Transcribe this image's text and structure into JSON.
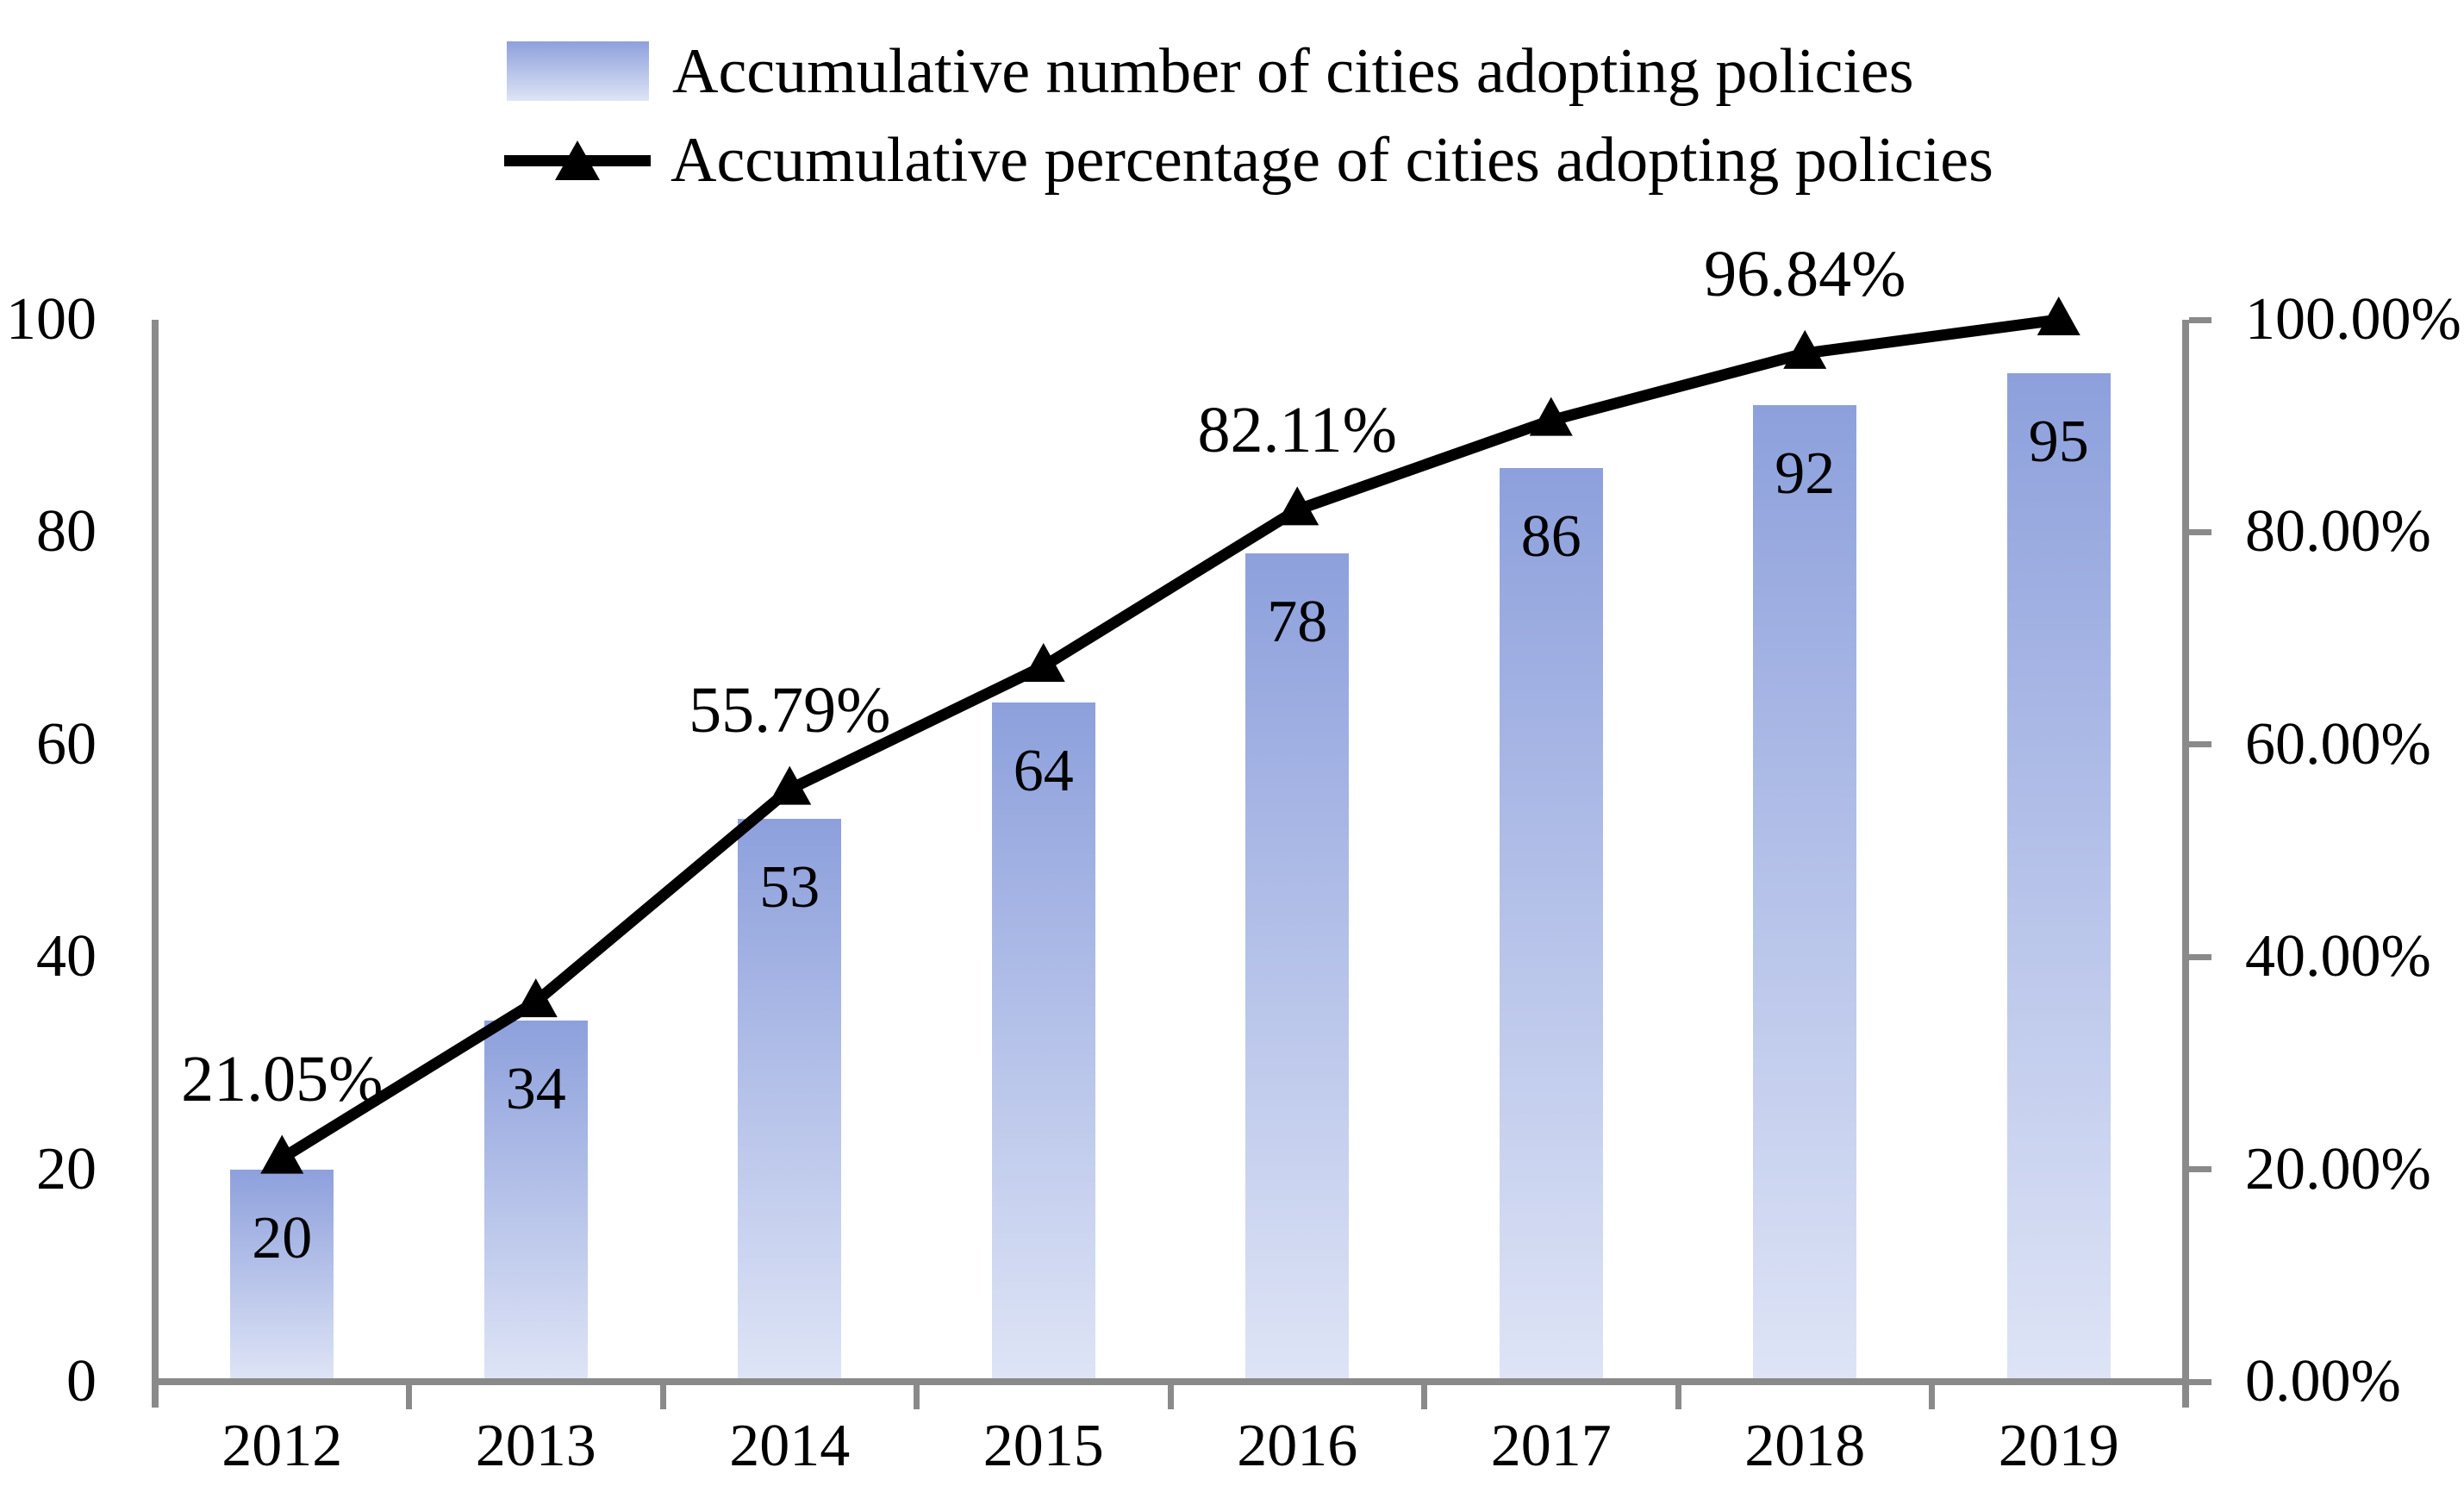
{
  "legend": {
    "items": [
      {
        "id": "bars",
        "label": "Accumulative number of cities adopting policies"
      },
      {
        "id": "line",
        "label": "Accumulative percentage of cities adopting policies"
      }
    ]
  },
  "colors": {
    "bar_gradient_top": "#8DA0DC",
    "bar_gradient_bottom": "#DEE4F6",
    "axis": "#8A8A8A",
    "line": "#000000",
    "text": "#000000"
  },
  "chart_data": {
    "type": "combo",
    "categories": [
      "2012",
      "2013",
      "2014",
      "2015",
      "2016",
      "2017",
      "2018",
      "2019"
    ],
    "series": [
      {
        "name": "Accumulative number of cities adopting policies",
        "type": "bar",
        "y_axis": "left",
        "values": [
          20,
          34,
          53,
          64,
          78,
          86,
          92,
          95
        ],
        "data_labels": [
          "20",
          "34",
          "53",
          "64",
          "78",
          "86",
          "92",
          "95"
        ]
      },
      {
        "name": "Accumulative percentage of cities adopting policies",
        "type": "line",
        "y_axis": "right",
        "marker": "triangle",
        "values": [
          21.05,
          35.79,
          55.79,
          67.37,
          82.11,
          90.53,
          96.84,
          100.0
        ],
        "data_labels": [
          "21.05%",
          null,
          "55.79%",
          null,
          "82.11%",
          null,
          "96.84%",
          null
        ]
      }
    ],
    "left_axis": {
      "range": [
        0,
        100
      ],
      "tick_labels": [
        "0",
        "20",
        "40",
        "60",
        "80",
        "100"
      ]
    },
    "right_axis": {
      "range": [
        0,
        100
      ],
      "tick_labels": [
        "0.00%",
        "20.00%",
        "40.00%",
        "60.00%",
        "80.00%",
        "100.00%"
      ]
    },
    "x_axis": {
      "tick_labels": [
        "2012",
        "2013",
        "2014",
        "2015",
        "2016",
        "2017",
        "2018",
        "2019"
      ]
    },
    "legend_position": "top",
    "grid": false
  }
}
